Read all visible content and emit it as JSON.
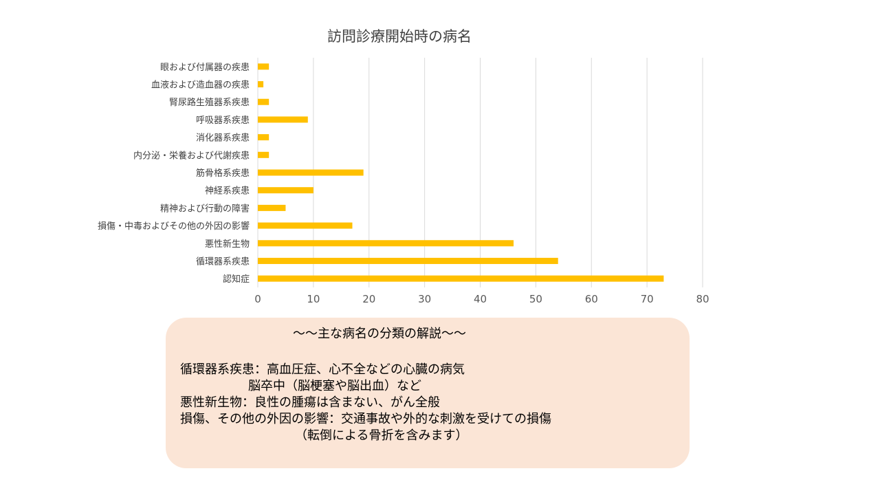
{
  "chart_data": {
    "type": "bar",
    "orientation": "horizontal",
    "title": "訪問診療開始時の病名",
    "categories": [
      "眼および付属器の疾患",
      "血液および造血器の疾患",
      "腎尿路生殖器系疾患",
      "呼吸器系疾患",
      "消化器系疾患",
      "内分泌・栄養および代謝疾患",
      "筋骨格系疾患",
      "神経系疾患",
      "精神および行動の障害",
      "損傷・中毒およびその他の外因の影響",
      "悪性新生物",
      "循環器系疾患",
      "認知症"
    ],
    "values": [
      2,
      1,
      2,
      9,
      2,
      2,
      19,
      10,
      5,
      17,
      46,
      54,
      73
    ],
    "xlim": [
      0,
      80
    ],
    "xticks": [
      "0",
      "10",
      "20",
      "30",
      "40",
      "50",
      "60",
      "70",
      "80"
    ],
    "xlabel": "",
    "ylabel": "",
    "grid": "vertical",
    "legend": "none",
    "bar_color": "#ffc000"
  },
  "notes": {
    "heading": "～～主な病名の分類の解説～～",
    "lines": [
      "循環器系疾患：高血圧症、心不全などの心臓の病気",
      "脳卒中（脳梗塞や脳出血）など",
      "悪性新生物：良性の腫瘍は含まない、がん全般",
      "損傷、その他の外因の影響：交通事故や外的な刺激を受けての損傷",
      "（転倒による骨折を含みます）"
    ],
    "background": "#fbe5d6"
  }
}
